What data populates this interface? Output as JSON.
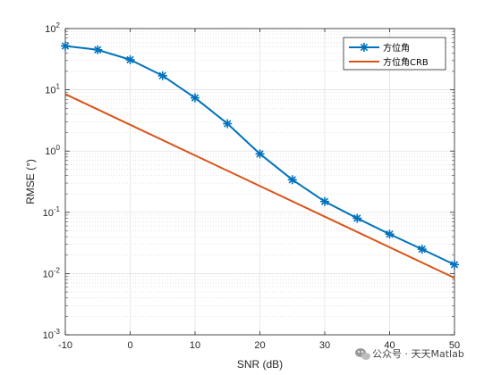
{
  "chart_data": {
    "type": "line",
    "xlabel": "SNR (dB)",
    "ylabel": "RMSE (°)",
    "xlim": [
      -10,
      50
    ],
    "ylim": [
      0.001,
      100
    ],
    "yscale": "log",
    "grid": true,
    "x_ticks": [
      {
        "value": -10,
        "label": "-10"
      },
      {
        "value": 0,
        "label": "0"
      },
      {
        "value": 10,
        "label": "10"
      },
      {
        "value": 20,
        "label": "20"
      },
      {
        "value": 30,
        "label": "30"
      },
      {
        "value": 40,
        "label": "40"
      },
      {
        "value": 50,
        "label": "50"
      }
    ],
    "y_ticks": [
      {
        "value": 0.001,
        "base": "10",
        "exp": "-3"
      },
      {
        "value": 0.01,
        "base": "10",
        "exp": "-2"
      },
      {
        "value": 0.1,
        "base": "10",
        "exp": "-1"
      },
      {
        "value": 1,
        "base": "10",
        "exp": "0"
      },
      {
        "value": 10,
        "base": "10",
        "exp": "1"
      },
      {
        "value": 100,
        "base": "10",
        "exp": "2"
      }
    ],
    "legend_position": "top-right",
    "series": [
      {
        "name": "方位角",
        "color": "#0072BD",
        "marker": "asterisk",
        "x": [
          -10,
          -5,
          0,
          5,
          10,
          15,
          20,
          25,
          30,
          35,
          40,
          45,
          50
        ],
        "y": [
          52,
          45,
          31,
          17,
          7.4,
          2.8,
          0.9,
          0.34,
          0.15,
          0.08,
          0.044,
          0.025,
          0.014
        ]
      },
      {
        "name": "方位角CRB",
        "color": "#D95319",
        "marker": "none",
        "x": [
          -10,
          50
        ],
        "y": [
          8.5,
          0.0085
        ]
      }
    ]
  },
  "watermark": {
    "icon": "wechat-icon",
    "text": "公众号 · 天天Matlab"
  }
}
